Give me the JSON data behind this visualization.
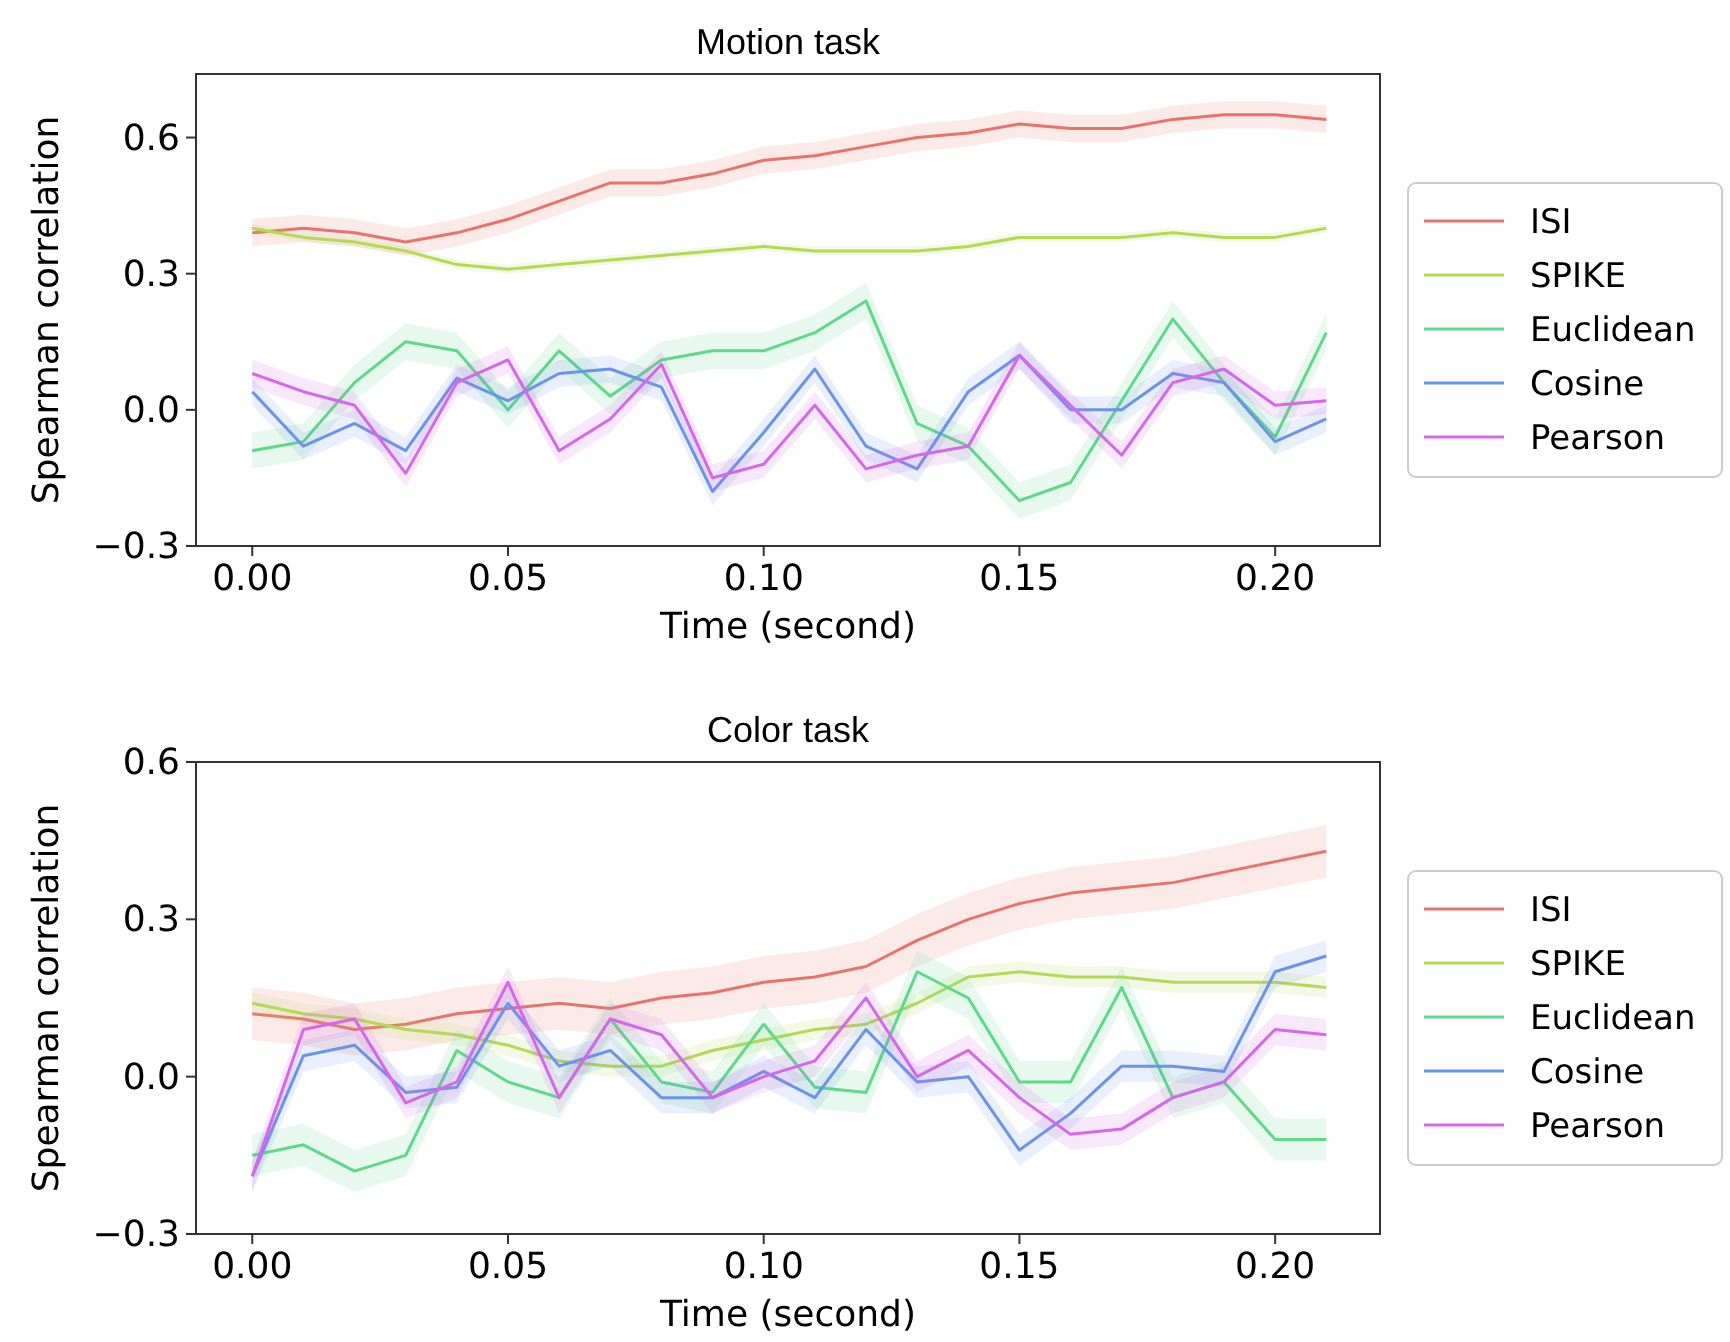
{
  "chart_data": [
    {
      "type": "line",
      "title": "Motion task",
      "xlabel": "Time (second)",
      "ylabel": "Spearman correlation",
      "legend": "right",
      "grid": false,
      "x": [
        0,
        0.01,
        0.02,
        0.03,
        0.04,
        0.05,
        0.06,
        0.07,
        0.08,
        0.09,
        0.1,
        0.11,
        0.12,
        0.13,
        0.14,
        0.15,
        0.16,
        0.17,
        0.18,
        0.19,
        0.2,
        0.21
      ],
      "xlim": [
        -0.011,
        0.2205
      ],
      "ylim": [
        -0.3,
        0.74
      ],
      "xticks": [
        {
          "value": 0,
          "label": "0.00"
        },
        {
          "value": 0.05,
          "label": "0.05"
        },
        {
          "value": 0.1,
          "label": "0.10"
        },
        {
          "value": 0.15,
          "label": "0.15"
        },
        {
          "value": 0.2,
          "label": "0.20"
        }
      ],
      "yticks": [
        {
          "value": -0.3,
          "label": "−0.3"
        },
        {
          "value": 0,
          "label": "0.0"
        },
        {
          "value": 0.3,
          "label": "0.3"
        },
        {
          "value": 0.6,
          "label": "0.6"
        }
      ],
      "series": [
        {
          "name": "ISI",
          "color": "#e8736c",
          "values": [
            0.39,
            0.4,
            0.39,
            0.37,
            0.39,
            0.42,
            0.46,
            0.5,
            0.5,
            0.52,
            0.55,
            0.56,
            0.58,
            0.6,
            0.61,
            0.63,
            0.62,
            0.62,
            0.64,
            0.65,
            0.65,
            0.64
          ],
          "lower": [
            0.36,
            0.37,
            0.36,
            0.34,
            0.36,
            0.39,
            0.43,
            0.47,
            0.47,
            0.49,
            0.52,
            0.53,
            0.55,
            0.57,
            0.58,
            0.6,
            0.59,
            0.59,
            0.61,
            0.62,
            0.62,
            0.61
          ],
          "upper": [
            0.42,
            0.43,
            0.42,
            0.4,
            0.42,
            0.45,
            0.49,
            0.53,
            0.53,
            0.55,
            0.58,
            0.59,
            0.61,
            0.63,
            0.64,
            0.66,
            0.65,
            0.65,
            0.67,
            0.68,
            0.68,
            0.67
          ]
        },
        {
          "name": "SPIKE",
          "color": "#b5d957",
          "values": [
            0.4,
            0.38,
            0.37,
            0.35,
            0.32,
            0.31,
            0.32,
            0.33,
            0.34,
            0.35,
            0.36,
            0.35,
            0.35,
            0.35,
            0.36,
            0.38,
            0.38,
            0.38,
            0.39,
            0.38,
            0.38,
            0.4
          ],
          "lower": [
            0.39,
            0.37,
            0.36,
            0.34,
            0.31,
            0.3,
            0.31,
            0.32,
            0.33,
            0.34,
            0.35,
            0.34,
            0.34,
            0.34,
            0.35,
            0.37,
            0.37,
            0.37,
            0.38,
            0.37,
            0.37,
            0.39
          ],
          "upper": [
            0.41,
            0.39,
            0.38,
            0.36,
            0.33,
            0.32,
            0.33,
            0.34,
            0.35,
            0.36,
            0.37,
            0.36,
            0.36,
            0.36,
            0.37,
            0.39,
            0.39,
            0.39,
            0.4,
            0.39,
            0.39,
            0.41
          ]
        },
        {
          "name": "Euclidean",
          "color": "#5ed98a",
          "values": [
            -0.09,
            -0.07,
            0.06,
            0.15,
            0.13,
            0.0,
            0.13,
            0.03,
            0.11,
            0.13,
            0.13,
            0.17,
            0.24,
            -0.03,
            -0.08,
            -0.2,
            -0.16,
            0.02,
            0.2,
            0.06,
            -0.06,
            0.17
          ],
          "lower": [
            -0.13,
            -0.11,
            0.02,
            0.11,
            0.09,
            -0.04,
            0.09,
            -0.01,
            0.07,
            0.09,
            0.09,
            0.13,
            0.2,
            -0.07,
            -0.12,
            -0.24,
            -0.2,
            -0.02,
            0.16,
            0.02,
            -0.1,
            0.13
          ],
          "upper": [
            -0.05,
            -0.03,
            0.1,
            0.19,
            0.17,
            0.04,
            0.17,
            0.07,
            0.15,
            0.17,
            0.17,
            0.21,
            0.28,
            0.01,
            -0.04,
            -0.16,
            -0.12,
            0.06,
            0.24,
            0.1,
            -0.02,
            0.21
          ]
        },
        {
          "name": "Cosine",
          "color": "#6b94e8",
          "values": [
            0.04,
            -0.08,
            -0.03,
            -0.09,
            0.07,
            0.02,
            0.08,
            0.09,
            0.05,
            -0.18,
            -0.05,
            0.09,
            -0.08,
            -0.13,
            0.04,
            0.12,
            0.0,
            0.0,
            0.08,
            0.06,
            -0.07,
            -0.02
          ],
          "lower": [
            0.01,
            -0.11,
            -0.06,
            -0.12,
            0.04,
            -0.01,
            0.05,
            0.06,
            0.02,
            -0.21,
            -0.08,
            0.06,
            -0.11,
            -0.16,
            0.01,
            0.09,
            -0.03,
            -0.03,
            0.05,
            0.03,
            -0.1,
            -0.05
          ],
          "upper": [
            0.07,
            -0.05,
            0.0,
            -0.06,
            0.1,
            0.05,
            0.11,
            0.12,
            0.08,
            -0.15,
            -0.02,
            0.12,
            -0.05,
            -0.1,
            0.07,
            0.15,
            0.03,
            0.03,
            0.11,
            0.09,
            -0.04,
            0.01
          ]
        },
        {
          "name": "Pearson",
          "color": "#d568e8",
          "values": [
            0.08,
            0.04,
            0.01,
            -0.14,
            0.06,
            0.11,
            -0.09,
            -0.02,
            0.1,
            -0.15,
            -0.12,
            0.01,
            -0.13,
            -0.1,
            -0.08,
            0.12,
            0.01,
            -0.1,
            0.06,
            0.09,
            0.01,
            0.02
          ],
          "lower": [
            0.05,
            0.01,
            -0.02,
            -0.17,
            0.03,
            0.08,
            -0.12,
            -0.05,
            0.07,
            -0.18,
            -0.15,
            -0.02,
            -0.16,
            -0.13,
            -0.11,
            0.09,
            -0.02,
            -0.13,
            0.03,
            0.06,
            -0.02,
            -0.01
          ],
          "upper": [
            0.11,
            0.07,
            0.04,
            -0.11,
            0.09,
            0.14,
            -0.06,
            0.01,
            0.13,
            -0.12,
            -0.09,
            0.04,
            -0.1,
            -0.07,
            -0.05,
            0.15,
            0.04,
            -0.07,
            0.09,
            0.12,
            0.04,
            0.05
          ]
        }
      ]
    },
    {
      "type": "line",
      "title": "Color task",
      "xlabel": "Time (second)",
      "ylabel": "Spearman correlation",
      "legend": "right",
      "grid": false,
      "x": [
        0,
        0.01,
        0.02,
        0.03,
        0.04,
        0.05,
        0.06,
        0.07,
        0.08,
        0.09,
        0.1,
        0.11,
        0.12,
        0.13,
        0.14,
        0.15,
        0.16,
        0.17,
        0.18,
        0.19,
        0.2,
        0.21
      ],
      "xlim": [
        -0.011,
        0.2205
      ],
      "ylim": [
        -0.3,
        0.6
      ],
      "xticks": [
        {
          "value": 0,
          "label": "0.00"
        },
        {
          "value": 0.05,
          "label": "0.05"
        },
        {
          "value": 0.1,
          "label": "0.10"
        },
        {
          "value": 0.15,
          "label": "0.15"
        },
        {
          "value": 0.2,
          "label": "0.20"
        }
      ],
      "yticks": [
        {
          "value": -0.3,
          "label": "−0.3"
        },
        {
          "value": 0,
          "label": "0.0"
        },
        {
          "value": 0.3,
          "label": "0.3"
        },
        {
          "value": 0.6,
          "label": "0.6"
        }
      ],
      "series": [
        {
          "name": "ISI",
          "color": "#e8736c",
          "values": [
            0.12,
            0.11,
            0.09,
            0.1,
            0.12,
            0.13,
            0.14,
            0.13,
            0.15,
            0.16,
            0.18,
            0.19,
            0.21,
            0.26,
            0.3,
            0.33,
            0.35,
            0.36,
            0.37,
            0.39,
            0.41,
            0.43
          ],
          "lower": [
            0.07,
            0.06,
            0.04,
            0.05,
            0.07,
            0.08,
            0.09,
            0.08,
            0.1,
            0.11,
            0.13,
            0.14,
            0.16,
            0.21,
            0.25,
            0.28,
            0.3,
            0.31,
            0.32,
            0.34,
            0.36,
            0.38
          ],
          "upper": [
            0.17,
            0.16,
            0.14,
            0.15,
            0.17,
            0.18,
            0.19,
            0.18,
            0.2,
            0.21,
            0.23,
            0.24,
            0.26,
            0.31,
            0.35,
            0.38,
            0.4,
            0.41,
            0.42,
            0.44,
            0.46,
            0.48
          ]
        },
        {
          "name": "SPIKE",
          "color": "#b5d957",
          "values": [
            0.14,
            0.12,
            0.11,
            0.09,
            0.08,
            0.06,
            0.03,
            0.02,
            0.02,
            0.05,
            0.07,
            0.09,
            0.1,
            0.14,
            0.19,
            0.2,
            0.19,
            0.19,
            0.18,
            0.18,
            0.18,
            0.17
          ],
          "lower": [
            0.12,
            0.1,
            0.09,
            0.07,
            0.06,
            0.04,
            0.01,
            0.0,
            0.0,
            0.03,
            0.05,
            0.07,
            0.08,
            0.12,
            0.17,
            0.18,
            0.17,
            0.17,
            0.16,
            0.16,
            0.16,
            0.15
          ],
          "upper": [
            0.16,
            0.14,
            0.13,
            0.11,
            0.1,
            0.08,
            0.05,
            0.04,
            0.04,
            0.07,
            0.09,
            0.11,
            0.12,
            0.16,
            0.21,
            0.22,
            0.21,
            0.21,
            0.2,
            0.2,
            0.2,
            0.19
          ]
        },
        {
          "name": "Euclidean",
          "color": "#5ed98a",
          "values": [
            -0.15,
            -0.13,
            -0.18,
            -0.15,
            0.05,
            -0.01,
            -0.04,
            0.11,
            -0.01,
            -0.03,
            0.1,
            -0.02,
            -0.03,
            0.2,
            0.15,
            -0.01,
            -0.01,
            0.17,
            -0.04,
            -0.01,
            -0.12,
            -0.12
          ],
          "lower": [
            -0.19,
            -0.17,
            -0.22,
            -0.19,
            0.01,
            -0.05,
            -0.08,
            0.07,
            -0.05,
            -0.07,
            0.06,
            -0.06,
            -0.07,
            0.16,
            0.11,
            -0.05,
            -0.05,
            0.13,
            -0.08,
            -0.05,
            -0.16,
            -0.16
          ],
          "upper": [
            -0.11,
            -0.09,
            -0.14,
            -0.11,
            0.09,
            0.03,
            0.0,
            0.15,
            0.03,
            0.01,
            0.14,
            0.02,
            0.01,
            0.24,
            0.19,
            0.03,
            0.03,
            0.21,
            0.0,
            0.03,
            -0.08,
            -0.08
          ]
        },
        {
          "name": "Cosine",
          "color": "#6b94e8",
          "values": [
            -0.19,
            0.04,
            0.06,
            -0.03,
            -0.02,
            0.14,
            0.02,
            0.05,
            -0.04,
            -0.04,
            0.01,
            -0.04,
            0.09,
            -0.01,
            0.0,
            -0.14,
            -0.07,
            0.02,
            0.02,
            0.01,
            0.2,
            0.23
          ],
          "lower": [
            -0.22,
            0.01,
            0.03,
            -0.06,
            -0.05,
            0.11,
            -0.01,
            0.02,
            -0.07,
            -0.07,
            -0.02,
            -0.07,
            0.06,
            -0.04,
            -0.03,
            -0.17,
            -0.1,
            -0.01,
            -0.01,
            -0.02,
            0.17,
            0.2
          ],
          "upper": [
            -0.16,
            0.07,
            0.09,
            0.0,
            0.01,
            0.17,
            0.05,
            0.08,
            -0.01,
            -0.01,
            0.04,
            -0.01,
            0.12,
            0.02,
            0.03,
            -0.11,
            -0.04,
            0.05,
            0.05,
            0.04,
            0.23,
            0.26
          ]
        },
        {
          "name": "Pearson",
          "color": "#d568e8",
          "values": [
            -0.19,
            0.09,
            0.11,
            -0.05,
            -0.01,
            0.18,
            -0.04,
            0.11,
            0.08,
            -0.04,
            0.0,
            0.03,
            0.15,
            0.0,
            0.05,
            -0.04,
            -0.11,
            -0.1,
            -0.04,
            -0.01,
            0.09,
            0.08
          ],
          "lower": [
            -0.22,
            0.06,
            0.08,
            -0.08,
            -0.04,
            0.15,
            -0.07,
            0.08,
            0.05,
            -0.07,
            -0.03,
            0.0,
            0.12,
            -0.03,
            0.02,
            -0.07,
            -0.14,
            -0.13,
            -0.07,
            -0.04,
            0.06,
            0.05
          ],
          "upper": [
            -0.16,
            0.12,
            0.14,
            -0.02,
            0.02,
            0.21,
            -0.01,
            0.14,
            0.11,
            -0.01,
            0.03,
            0.06,
            0.18,
            0.03,
            0.08,
            -0.01,
            -0.08,
            -0.07,
            -0.01,
            0.02,
            0.12,
            0.11
          ]
        }
      ]
    }
  ]
}
